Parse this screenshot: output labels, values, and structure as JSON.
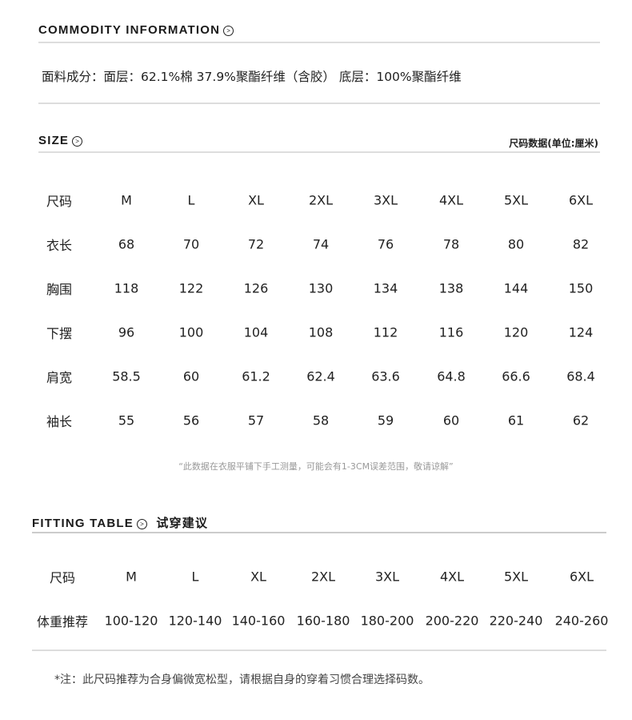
{
  "commodity": {
    "title": "COMMODITY INFORMATION",
    "fabric": "面料成分：面层：62.1%棉 37.9%聚酯纤维（含胶）  底层：100%聚酯纤维"
  },
  "size": {
    "title": "SIZE",
    "unit_note": "尺码数据(单位:厘米)",
    "rows": [
      [
        "尺码",
        "M",
        "L",
        "XL",
        "2XL",
        "3XL",
        "4XL",
        "5XL",
        "6XL"
      ],
      [
        "衣长",
        "68",
        "70",
        "72",
        "74",
        "76",
        "78",
        "80",
        "82"
      ],
      [
        "胸围",
        "118",
        "122",
        "126",
        "130",
        "134",
        "138",
        "144",
        "150"
      ],
      [
        "下摆",
        "96",
        "100",
        "104",
        "108",
        "112",
        "116",
        "120",
        "124"
      ],
      [
        "肩宽",
        "58.5",
        "60",
        "61.2",
        "62.4",
        "63.6",
        "64.8",
        "66.6",
        "68.4"
      ],
      [
        "袖长",
        "55",
        "56",
        "57",
        "58",
        "59",
        "60",
        "61",
        "62"
      ]
    ],
    "note": "“此数据在衣服平铺下手工测量，可能会有1-3CM误差范围，敬请谅解”"
  },
  "fitting": {
    "title": "FITTING TABLE",
    "title_cn": "试穿建议",
    "rows": [
      [
        "尺码",
        "M",
        "L",
        "XL",
        "2XL",
        "3XL",
        "4XL",
        "5XL",
        "6XL"
      ],
      [
        "体重推荐",
        "100-120",
        "120-140",
        "140-160",
        "160-180",
        "180-200",
        "200-220",
        "220-240",
        "240-260"
      ]
    ],
    "footnote": "*注：此尺码推荐为合身偏微宽松型，请根据自身的穿着习惯合理选择码数。"
  },
  "icons": {
    "section_arrow": "circle-chevron-right-icon"
  }
}
